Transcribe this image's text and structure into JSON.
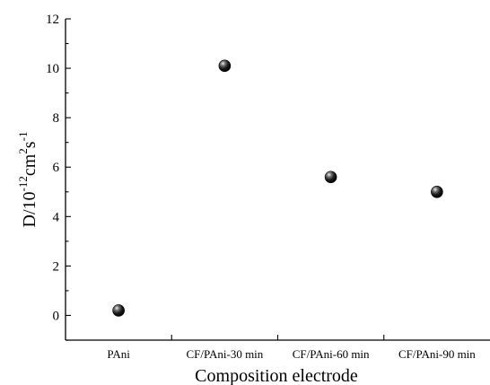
{
  "chart_data": {
    "type": "scatter",
    "categories": [
      "PAni",
      "CF/PAni-30 min",
      "CF/PAni-60 min",
      "CF/PAni-90 min"
    ],
    "values": [
      0.2,
      10.1,
      5.6,
      5.0
    ],
    "xlabel": "Composition electrode",
    "ylabel": {
      "base": "D/10",
      "exp1": "-12",
      "unit1": "cm",
      "exp2": "2",
      "unit2": "s",
      "exp3": "-1"
    },
    "ylim": [
      -1,
      12
    ],
    "yticks": [
      0,
      2,
      4,
      6,
      8,
      10,
      12
    ],
    "grid": false,
    "marker_color": "#000000"
  }
}
